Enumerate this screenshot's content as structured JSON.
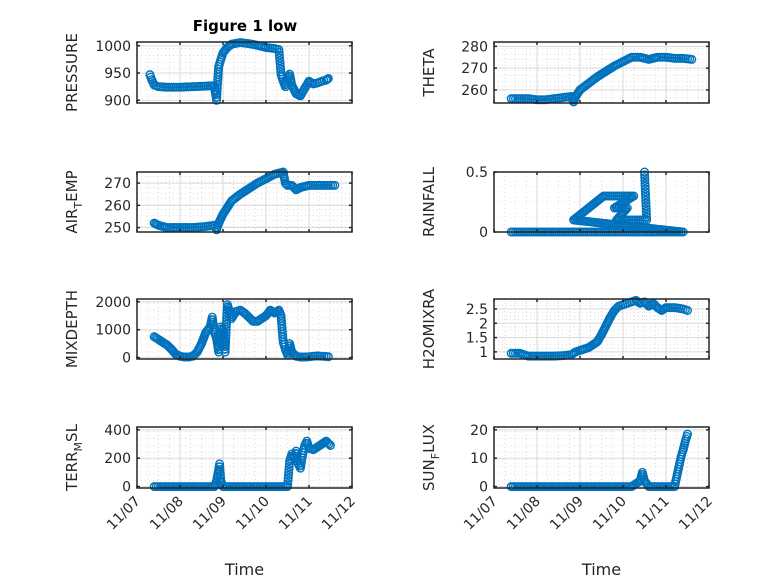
{
  "figure": {
    "title": "Figure 1 low",
    "x_tick_labels": [
      "11/07",
      "11/08",
      "11/09",
      "11/10",
      "11/11",
      "11/12"
    ],
    "x_label": "Time",
    "marker_color": "#0072BD",
    "grid_color": "#DADADA",
    "axis_color": "#262626"
  },
  "chart_data": [
    {
      "type": "scatter",
      "title": "Figure 1 low",
      "ylabel": "PRESSURE",
      "ylabel_sub": "",
      "xlim": [
        0,
        5
      ],
      "ylim": [
        895,
        1007
      ],
      "yticks": [
        900,
        950,
        1000
      ],
      "xlabel": "",
      "xticklabels_visible": false,
      "x": [
        0.3,
        0.34,
        0.4,
        0.5,
        0.7,
        1,
        1.3,
        1.6,
        1.8,
        1.82,
        1.85,
        1.87,
        1.9,
        1.95,
        2,
        2.1,
        2.2,
        2.4,
        2.6,
        2.8,
        3,
        3.2,
        3.3,
        3.35,
        3.4,
        3.45,
        3.5,
        3.55,
        3.6,
        3.7,
        3.8,
        3.9,
        4.0,
        4.1,
        4.2,
        4.3,
        4.4,
        4.45
      ],
      "y": [
        947,
        938,
        928,
        925,
        924,
        924,
        925,
        926,
        927,
        915,
        900,
        928,
        962,
        975,
        987,
        997,
        1003,
        1006,
        1004,
        1001,
        997,
        995,
        993,
        947,
        935,
        925,
        942,
        948,
        928,
        912,
        908,
        922,
        935,
        930,
        932,
        935,
        937,
        940
      ]
    },
    {
      "type": "scatter",
      "ylabel": "THETA",
      "ylabel_sub": "",
      "xlim": [
        0,
        5
      ],
      "ylim": [
        254,
        282
      ],
      "yticks": [
        260,
        270,
        280
      ],
      "xlabel": "",
      "xticklabels_visible": false,
      "x": [
        0.4,
        0.6,
        0.8,
        1.0,
        1.2,
        1.4,
        1.6,
        1.8,
        1.85,
        1.9,
        2.0,
        2.2,
        2.4,
        2.6,
        2.8,
        3.0,
        3.2,
        3.4,
        3.6,
        3.8,
        4.0,
        4.2,
        4.4,
        4.6
      ],
      "y": [
        256,
        256,
        256,
        255.5,
        255.5,
        256,
        256.5,
        257,
        254.5,
        257,
        260,
        263,
        266,
        268.5,
        271,
        273,
        275,
        275,
        274,
        275,
        275,
        274.5,
        274.5,
        274
      ]
    },
    {
      "type": "scatter",
      "ylabel": "AIR",
      "ylabel_sub": "T",
      "ylabel_suffix": "EMP",
      "xlim": [
        0,
        5
      ],
      "ylim": [
        248,
        275
      ],
      "yticks": [
        250,
        260,
        270
      ],
      "xlabel": "",
      "xticklabels_visible": false,
      "x": [
        0.4,
        0.5,
        0.7,
        1.0,
        1.3,
        1.6,
        1.8,
        1.85,
        1.9,
        2.0,
        2.1,
        2.2,
        2.4,
        2.6,
        2.8,
        3.0,
        3.2,
        3.4,
        3.45,
        3.5,
        3.6,
        3.7,
        3.8,
        4.0,
        4.2,
        4.4,
        4.6
      ],
      "y": [
        252,
        251,
        250,
        250,
        250,
        250.5,
        251,
        249,
        252,
        256,
        259,
        262,
        265,
        267.5,
        270,
        272,
        274,
        275,
        270,
        269,
        269,
        267,
        268,
        269,
        269,
        269,
        269
      ]
    },
    {
      "type": "scatter",
      "ylabel": "RAINFALL",
      "ylabel_sub": "",
      "xlim": [
        0,
        5
      ],
      "ylim": [
        0,
        0.5
      ],
      "yticks": [
        0,
        0.5
      ],
      "xlabel": "",
      "xticklabels_visible": false,
      "x": [
        0.4,
        0.8,
        1.2,
        1.6,
        2.0,
        2.4,
        2.8,
        3.2,
        3.6,
        4.0,
        4.4,
        1.85,
        2.55,
        2.65,
        2.75,
        2.9,
        3.0,
        3.1,
        3.25,
        2.8,
        3.1,
        2.85,
        3.3,
        3.4,
        3.55,
        3.5
      ],
      "y": [
        0,
        0,
        0,
        0,
        0,
        0,
        0,
        0,
        0,
        0,
        0,
        0.1,
        0.3,
        0.3,
        0.3,
        0.3,
        0.3,
        0.3,
        0.3,
        0.2,
        0.2,
        0.1,
        0.1,
        0.1,
        0.1,
        0.5
      ]
    },
    {
      "type": "scatter",
      "ylabel": "MIXDEPTH",
      "ylabel_sub": "",
      "xlim": [
        0,
        5
      ],
      "ylim": [
        -50,
        2100
      ],
      "yticks": [
        0,
        1000,
        2000
      ],
      "xlabel": "",
      "xticklabels_visible": false,
      "x": [
        0.4,
        0.5,
        0.6,
        0.7,
        0.8,
        0.9,
        1.0,
        1.1,
        1.2,
        1.3,
        1.4,
        1.5,
        1.6,
        1.7,
        1.75,
        1.8,
        1.85,
        1.9,
        1.95,
        2.0,
        2.05,
        2.1,
        2.2,
        2.3,
        2.4,
        2.5,
        2.6,
        2.7,
        2.8,
        2.9,
        3.0,
        3.1,
        3.2,
        3.3,
        3.35,
        3.4,
        3.45,
        3.5,
        3.55,
        3.6,
        3.7,
        3.8,
        3.9,
        4.0,
        4.1,
        4.2,
        4.3,
        4.4,
        4.45
      ],
      "y": [
        750,
        650,
        550,
        450,
        300,
        120,
        50,
        20,
        20,
        50,
        200,
        500,
        900,
        1100,
        1450,
        900,
        700,
        200,
        1100,
        900,
        200,
        1900,
        1400,
        1650,
        1700,
        1600,
        1450,
        1300,
        1300,
        1400,
        1500,
        1700,
        1600,
        1700,
        1500,
        550,
        300,
        100,
        500,
        200,
        50,
        20,
        20,
        30,
        50,
        60,
        50,
        40,
        30
      ]
    },
    {
      "type": "scatter",
      "ylabel": "H2OMIXRA",
      "ylabel_sub": "",
      "xlim": [
        0,
        5
      ],
      "ylim": [
        0.75,
        2.85
      ],
      "yticks": [
        1,
        1.5,
        2,
        2.5
      ],
      "xlabel": "",
      "xticklabels_visible": false,
      "x": [
        0.4,
        0.6,
        0.8,
        1.0,
        1.2,
        1.4,
        1.6,
        1.8,
        1.9,
        2.0,
        2.2,
        2.4,
        2.5,
        2.6,
        2.7,
        2.8,
        2.9,
        3.0,
        3.1,
        3.2,
        3.3,
        3.4,
        3.5,
        3.6,
        3.7,
        3.8,
        3.9,
        4.0,
        4.2,
        4.4,
        4.5
      ],
      "y": [
        0.95,
        0.95,
        0.85,
        0.85,
        0.85,
        0.85,
        0.87,
        0.9,
        1.0,
        1.05,
        1.15,
        1.35,
        1.6,
        1.9,
        2.2,
        2.45,
        2.6,
        2.65,
        2.7,
        2.75,
        2.8,
        2.7,
        2.75,
        2.6,
        2.7,
        2.55,
        2.45,
        2.55,
        2.55,
        2.5,
        2.45
      ]
    },
    {
      "type": "scatter",
      "ylabel": "TERR",
      "ylabel_sub": "M",
      "ylabel_suffix": "SL",
      "xlim": [
        0,
        5
      ],
      "ylim": [
        -10,
        420
      ],
      "yticks": [
        0,
        200,
        400
      ],
      "xlabel": "Time",
      "xticklabels_visible": true,
      "x": [
        0.4,
        0.7,
        1.0,
        1.3,
        1.6,
        1.8,
        1.85,
        1.9,
        1.92,
        1.95,
        2.0,
        2.3,
        2.6,
        2.9,
        3.2,
        3.5,
        3.55,
        3.6,
        3.65,
        3.7,
        3.75,
        3.8,
        3.85,
        3.9,
        3.95,
        4.0,
        4.1,
        4.2,
        4.3,
        4.4,
        4.5
      ],
      "y": [
        0,
        0,
        0,
        0,
        0,
        0,
        40,
        120,
        160,
        40,
        0,
        0,
        0,
        0,
        0,
        0,
        180,
        230,
        200,
        250,
        160,
        130,
        220,
        290,
        320,
        270,
        260,
        280,
        300,
        320,
        290
      ]
    },
    {
      "type": "scatter",
      "ylabel": "SUN",
      "ylabel_sub": "F",
      "ylabel_suffix": "LUX",
      "xlim": [
        0,
        5
      ],
      "ylim": [
        -0.5,
        21
      ],
      "yticks": [
        0,
        10,
        20
      ],
      "xlabel": "Time",
      "xticklabels_visible": true,
      "x": [
        0.4,
        0.8,
        1.2,
        1.6,
        2.0,
        2.4,
        2.8,
        3.2,
        3.4,
        3.45,
        3.5,
        3.6,
        3.8,
        4.0,
        4.2,
        4.25,
        4.3,
        4.35,
        4.4,
        4.45,
        4.5
      ],
      "y": [
        0,
        0,
        0,
        0,
        0,
        0,
        0,
        0,
        2,
        5,
        2,
        0,
        0,
        0,
        0,
        3.5,
        7,
        10.5,
        13,
        16,
        18.5
      ]
    }
  ]
}
